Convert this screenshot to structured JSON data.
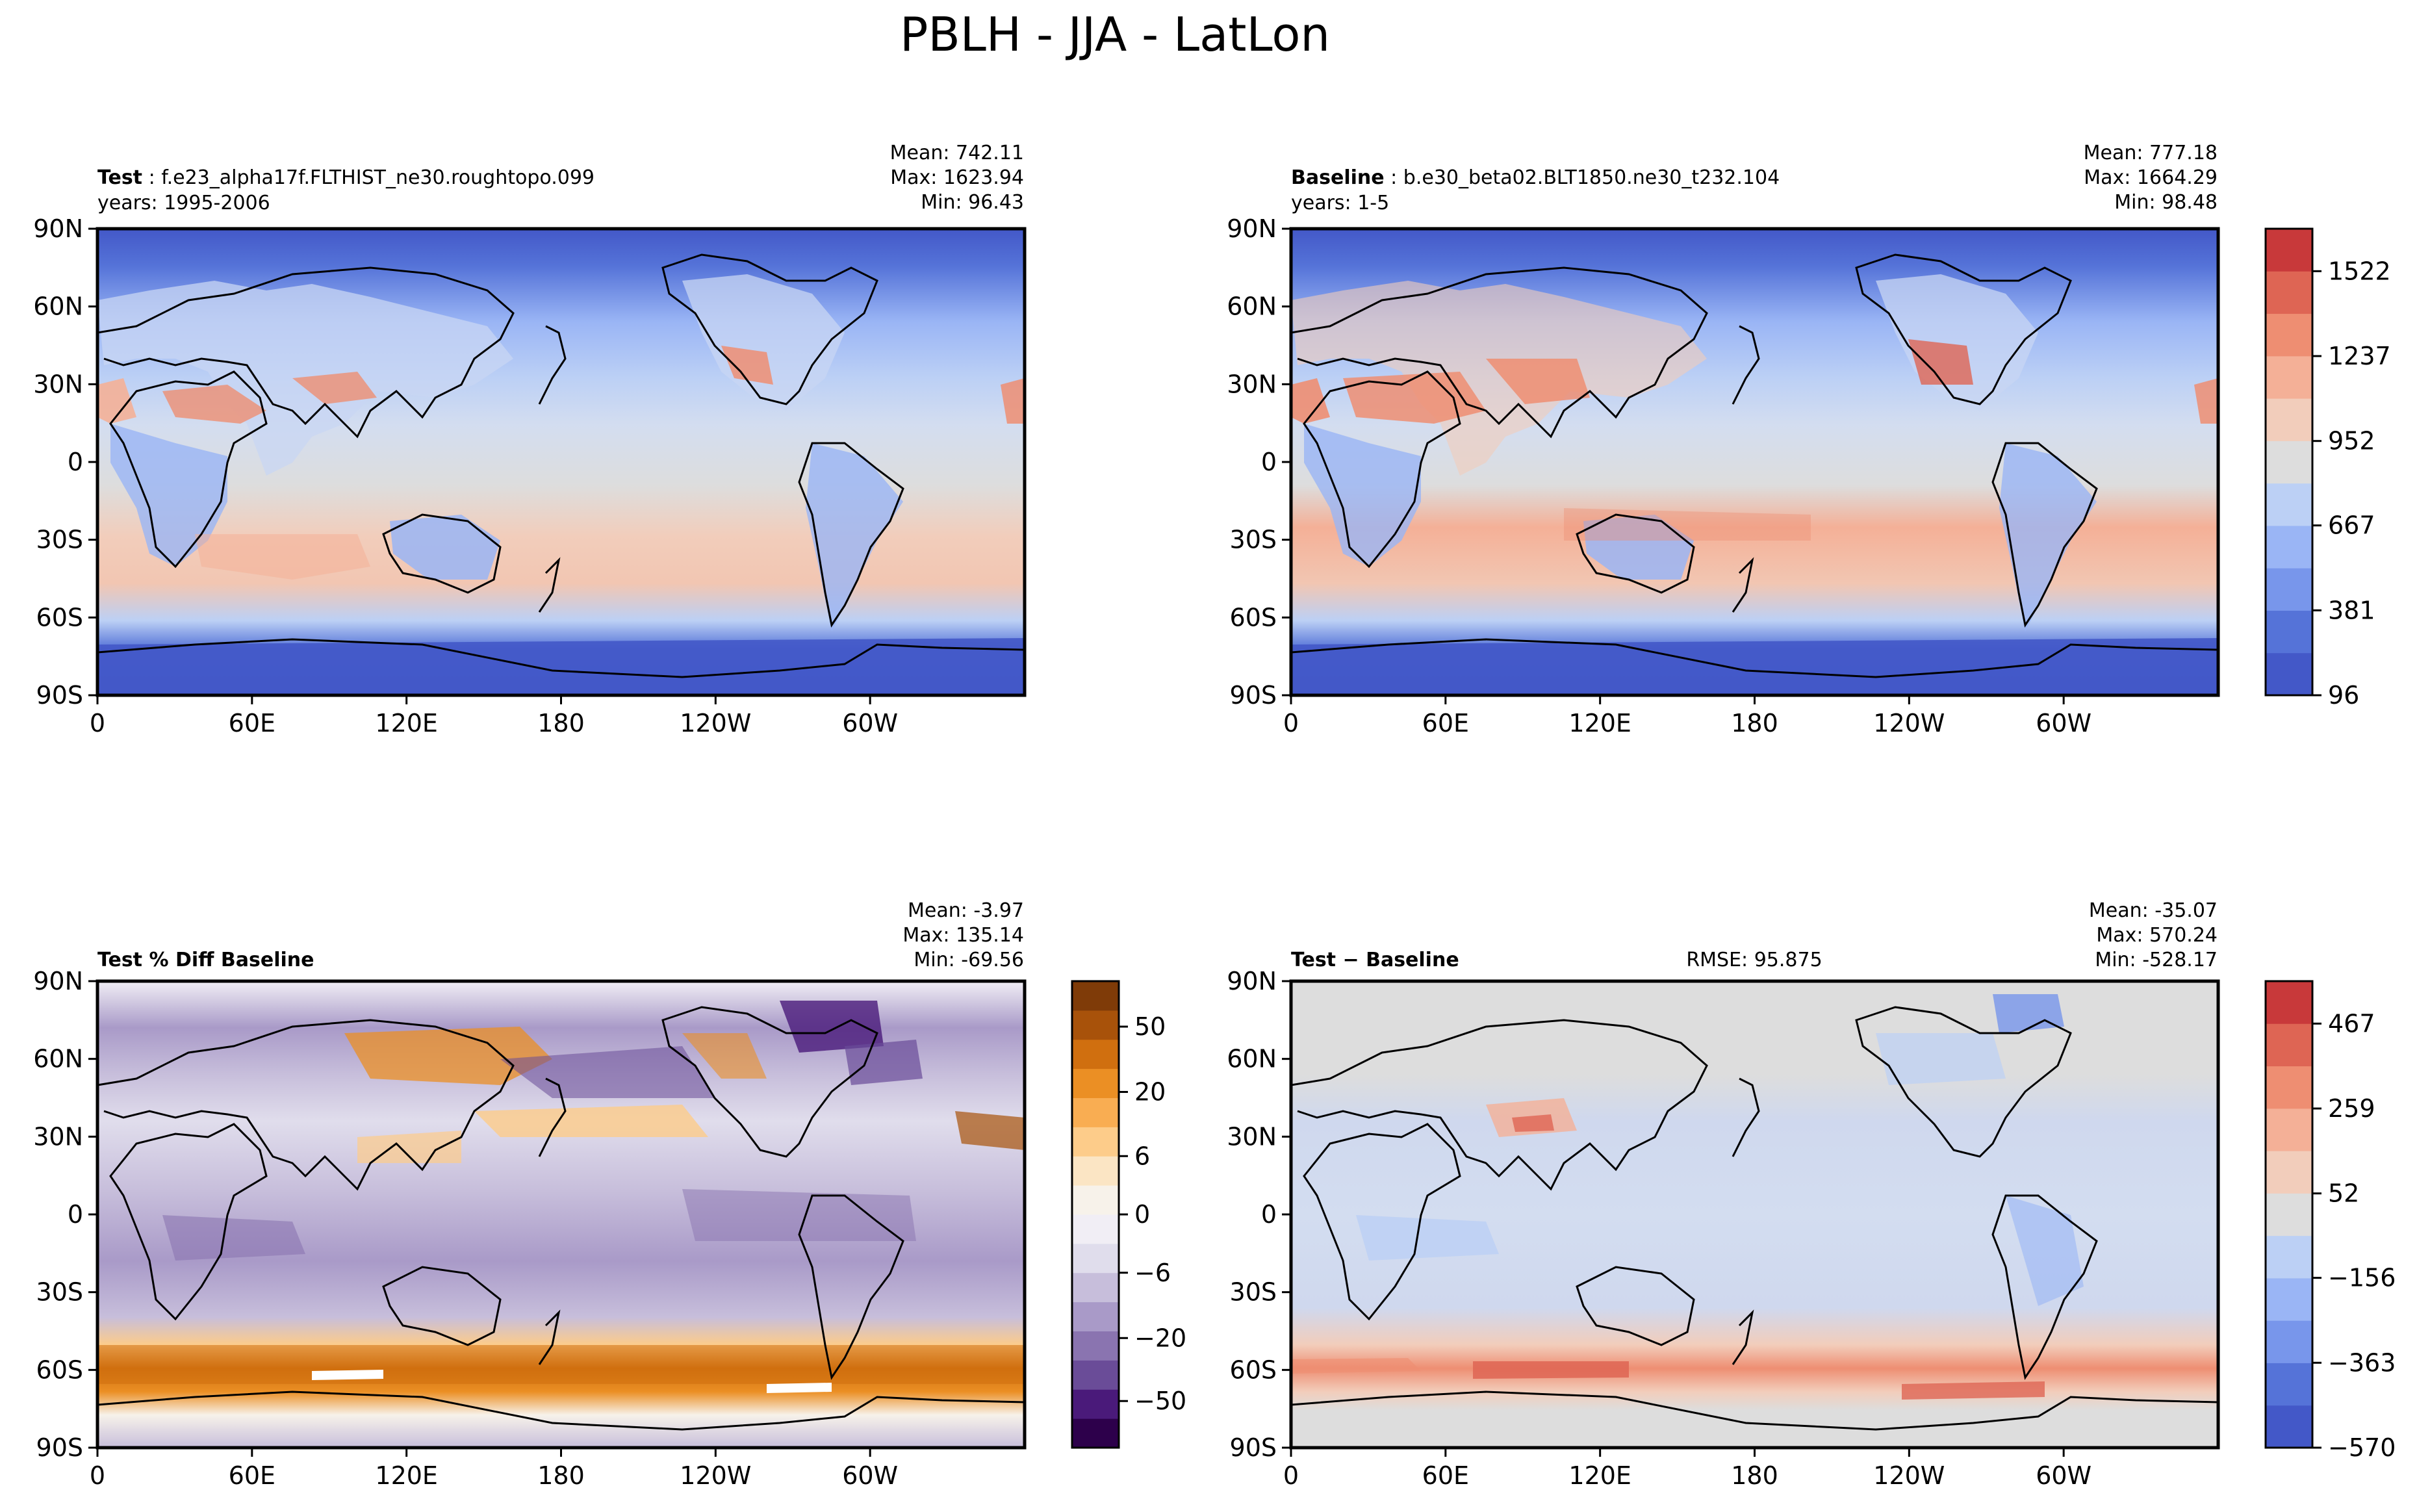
{
  "suptitle": "PBLH - JJA - LatLon",
  "panels": {
    "test": {
      "label": "Test",
      "case": "f.e23_alpha17f.FLTHIST_ne30.roughtopo.099",
      "years": "years: 1995-2006",
      "mean": "Mean: 742.11",
      "max": "Max: 1623.94",
      "min": "Min: 96.43"
    },
    "baseline": {
      "label": "Baseline",
      "case": "b.e30_beta02.BLT1850.ne30_t232.104",
      "years": "years: 1-5",
      "mean": "Mean: 777.18",
      "max": "Max: 1664.29",
      "min": "Min: 98.48"
    },
    "pctdiff": {
      "label": "Test % Diff Baseline",
      "mean": "Mean: -3.97",
      "max": "Max: 135.14",
      "min": "Min: -69.56"
    },
    "diff": {
      "label": "Test",
      "label_minus": "−",
      "label2": "Baseline",
      "rmse": "RMSE: 95.875",
      "mean": "Mean: -35.07",
      "max": "Max: 570.24",
      "min": "Min: -528.17"
    }
  },
  "axes": {
    "lat_ticks": [
      "90N",
      "60N",
      "30N",
      "0",
      "30S",
      "60S",
      "90S"
    ],
    "lon_ticks": [
      "0",
      "60E",
      "120E",
      "180",
      "120W",
      "60W"
    ]
  },
  "colorbars": {
    "main": {
      "tick_labels": [
        "1522",
        "1237",
        "952",
        "667",
        "381",
        "96"
      ],
      "colors": [
        "#4358c8",
        "#5573d8",
        "#7896eb",
        "#9ab5f5",
        "#bcd0f5",
        "#dddddd",
        "#f2cdbb",
        "#f4b097",
        "#ee8e72",
        "#de6554",
        "#c8393a"
      ]
    },
    "pctdiff": {
      "tick_labels": [
        "50",
        "20",
        "6",
        "0",
        "−6",
        "−20",
        "−50"
      ],
      "colors": [
        "#2d004b",
        "#4a1a7a",
        "#6a4c98",
        "#8a74b0",
        "#a99ac8",
        "#c7bedb",
        "#e0ddec",
        "#f1eef5",
        "#f7f2ea",
        "#fbe5c4",
        "#fdcc8a",
        "#f9ad52",
        "#eb8f24",
        "#d06f0f",
        "#a8520a",
        "#7f3b08"
      ]
    },
    "diff": {
      "tick_labels": [
        "467",
        "259",
        "52",
        "−156",
        "−363",
        "−570"
      ],
      "colors": [
        "#4358c8",
        "#5573d8",
        "#7896eb",
        "#9ab5f5",
        "#bcd0f5",
        "#dddddd",
        "#f2cdbb",
        "#f4b097",
        "#ee8e72",
        "#de6554",
        "#c8393a"
      ]
    }
  }
}
